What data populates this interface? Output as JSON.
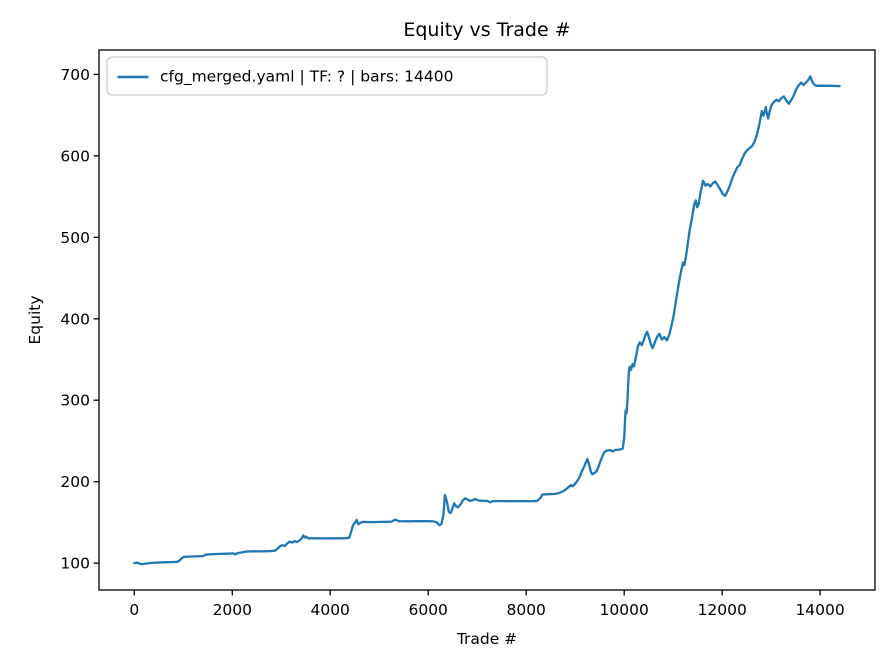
{
  "figure": {
    "background": "#ffffff",
    "text_color": "#000000",
    "spine_color": "#000000"
  },
  "chart_data": {
    "type": "line",
    "title": "Equity vs Trade #",
    "xlabel": "Trade #",
    "ylabel": "Equity",
    "grid": false,
    "legend_position": "upper-left",
    "x_ticks": [
      0,
      2000,
      4000,
      6000,
      8000,
      10000,
      12000,
      14000
    ],
    "y_ticks": [
      100,
      200,
      300,
      400,
      500,
      600,
      700
    ],
    "xlim": [
      -720,
      15120
    ],
    "ylim": [
      67,
      730
    ],
    "series": [
      {
        "name": "cfg_merged.yaml | TF: ? | bars: 14400",
        "color": "#1f77b4",
        "points": [
          [
            0,
            100
          ],
          [
            60,
            100.5
          ],
          [
            100,
            99.5
          ],
          [
            160,
            98.7
          ],
          [
            220,
            99.3
          ],
          [
            300,
            100
          ],
          [
            450,
            100.6
          ],
          [
            600,
            101
          ],
          [
            750,
            101.3
          ],
          [
            880,
            101.6
          ],
          [
            930,
            103.5
          ],
          [
            970,
            106
          ],
          [
            1010,
            107.8
          ],
          [
            1100,
            108
          ],
          [
            1250,
            108.2
          ],
          [
            1400,
            108.6
          ],
          [
            1460,
            110.3
          ],
          [
            1550,
            110.8
          ],
          [
            1700,
            111.2
          ],
          [
            1900,
            111.6
          ],
          [
            2020,
            111.9
          ],
          [
            2060,
            110.8
          ],
          [
            2110,
            112.3
          ],
          [
            2200,
            113.2
          ],
          [
            2300,
            114.3
          ],
          [
            2450,
            114.5
          ],
          [
            2600,
            114.4
          ],
          [
            2750,
            114.6
          ],
          [
            2870,
            115.2
          ],
          [
            2920,
            117.5
          ],
          [
            2970,
            120.5
          ],
          [
            3020,
            122
          ],
          [
            3070,
            121
          ],
          [
            3120,
            124
          ],
          [
            3170,
            126.3
          ],
          [
            3220,
            125.2
          ],
          [
            3270,
            127
          ],
          [
            3320,
            125.8
          ],
          [
            3370,
            127.8
          ],
          [
            3420,
            130.5
          ],
          [
            3450,
            134
          ],
          [
            3480,
            131.3
          ],
          [
            3510,
            132.6
          ],
          [
            3550,
            130.4
          ],
          [
            3700,
            130.5
          ],
          [
            3900,
            130.4
          ],
          [
            4100,
            130.5
          ],
          [
            4300,
            130.5
          ],
          [
            4390,
            131.2
          ],
          [
            4430,
            139
          ],
          [
            4460,
            146
          ],
          [
            4500,
            149
          ],
          [
            4540,
            153
          ],
          [
            4570,
            147.8
          ],
          [
            4620,
            149.6
          ],
          [
            4680,
            150.6
          ],
          [
            4850,
            150.4
          ],
          [
            5050,
            150.6
          ],
          [
            5250,
            150.8
          ],
          [
            5320,
            153.4
          ],
          [
            5400,
            151.6
          ],
          [
            5550,
            151.4
          ],
          [
            5750,
            151.5
          ],
          [
            5950,
            151.5
          ],
          [
            6100,
            151.4
          ],
          [
            6170,
            150.2
          ],
          [
            6230,
            146.5
          ],
          [
            6270,
            148
          ],
          [
            6310,
            159
          ],
          [
            6340,
            183.5
          ],
          [
            6380,
            176
          ],
          [
            6420,
            163
          ],
          [
            6460,
            161.5
          ],
          [
            6500,
            168
          ],
          [
            6530,
            173.5
          ],
          [
            6570,
            169.8
          ],
          [
            6610,
            168.5
          ],
          [
            6660,
            172
          ],
          [
            6710,
            177.3
          ],
          [
            6760,
            179.6
          ],
          [
            6810,
            177.8
          ],
          [
            6860,
            176.4
          ],
          [
            6910,
            177.2
          ],
          [
            6960,
            178.6
          ],
          [
            7010,
            177.3
          ],
          [
            7100,
            176.4
          ],
          [
            7200,
            176.5
          ],
          [
            7260,
            174.6
          ],
          [
            7320,
            176.2
          ],
          [
            7500,
            176.1
          ],
          [
            7700,
            176
          ],
          [
            7900,
            176.1
          ],
          [
            8100,
            176
          ],
          [
            8220,
            176.4
          ],
          [
            8290,
            180
          ],
          [
            8330,
            184.3
          ],
          [
            8450,
            184.6
          ],
          [
            8600,
            185
          ],
          [
            8680,
            186.3
          ],
          [
            8750,
            188
          ],
          [
            8810,
            190.5
          ],
          [
            8860,
            193
          ],
          [
            8910,
            195.8
          ],
          [
            8950,
            194.2
          ],
          [
            9000,
            197.5
          ],
          [
            9050,
            201.5
          ],
          [
            9100,
            207
          ],
          [
            9140,
            213
          ],
          [
            9180,
            218
          ],
          [
            9220,
            224
          ],
          [
            9250,
            227.8
          ],
          [
            9280,
            222
          ],
          [
            9320,
            212
          ],
          [
            9350,
            209
          ],
          [
            9400,
            211
          ],
          [
            9440,
            213
          ],
          [
            9480,
            219
          ],
          [
            9520,
            226
          ],
          [
            9560,
            232
          ],
          [
            9600,
            236.8
          ],
          [
            9650,
            238.3
          ],
          [
            9720,
            238.6
          ],
          [
            9770,
            237.2
          ],
          [
            9820,
            239
          ],
          [
            9900,
            239.3
          ],
          [
            9970,
            240.5
          ],
          [
            10000,
            254
          ],
          [
            10015,
            272
          ],
          [
            10030,
            287
          ],
          [
            10050,
            284.5
          ],
          [
            10065,
            298
          ],
          [
            10080,
            318
          ],
          [
            10095,
            333
          ],
          [
            10110,
            341
          ],
          [
            10140,
            337.5
          ],
          [
            10170,
            344.5
          ],
          [
            10200,
            341.5
          ],
          [
            10240,
            353
          ],
          [
            10280,
            366
          ],
          [
            10320,
            371
          ],
          [
            10360,
            367.5
          ],
          [
            10400,
            374
          ],
          [
            10440,
            381
          ],
          [
            10470,
            384
          ],
          [
            10510,
            376
          ],
          [
            10550,
            368
          ],
          [
            10580,
            364
          ],
          [
            10620,
            370
          ],
          [
            10670,
            377.5
          ],
          [
            10720,
            381.5
          ],
          [
            10770,
            374.5
          ],
          [
            10820,
            377.5
          ],
          [
            10870,
            373.5
          ],
          [
            10920,
            380
          ],
          [
            10960,
            390
          ],
          [
            11010,
            404
          ],
          [
            11060,
            423
          ],
          [
            11110,
            442
          ],
          [
            11160,
            458
          ],
          [
            11200,
            469
          ],
          [
            11230,
            466
          ],
          [
            11270,
            480
          ],
          [
            11310,
            497
          ],
          [
            11340,
            510
          ],
          [
            11370,
            519
          ],
          [
            11400,
            530
          ],
          [
            11430,
            540
          ],
          [
            11460,
            545.5
          ],
          [
            11490,
            537
          ],
          [
            11520,
            540.5
          ],
          [
            11550,
            552
          ],
          [
            11580,
            561
          ],
          [
            11610,
            569.5
          ],
          [
            11660,
            563.5
          ],
          [
            11710,
            565.5
          ],
          [
            11760,
            562.5
          ],
          [
            11810,
            566.5
          ],
          [
            11860,
            568.5
          ],
          [
            11910,
            564
          ],
          [
            11960,
            559
          ],
          [
            12010,
            553.5
          ],
          [
            12060,
            551
          ],
          [
            12110,
            556.5
          ],
          [
            12160,
            564
          ],
          [
            12210,
            573
          ],
          [
            12260,
            580
          ],
          [
            12310,
            586
          ],
          [
            12360,
            589
          ],
          [
            12410,
            596.5
          ],
          [
            12460,
            603
          ],
          [
            12510,
            607
          ],
          [
            12560,
            609.5
          ],
          [
            12610,
            612
          ],
          [
            12660,
            617
          ],
          [
            12710,
            626
          ],
          [
            12760,
            639
          ],
          [
            12790,
            649
          ],
          [
            12810,
            655
          ],
          [
            12840,
            649.5
          ],
          [
            12870,
            655
          ],
          [
            12890,
            660
          ],
          [
            12910,
            652.5
          ],
          [
            12940,
            646
          ],
          [
            12970,
            655
          ],
          [
            13010,
            662.5
          ],
          [
            13060,
            666.5
          ],
          [
            13110,
            669
          ],
          [
            13160,
            667
          ],
          [
            13210,
            671
          ],
          [
            13260,
            673
          ],
          [
            13310,
            668
          ],
          [
            13360,
            664
          ],
          [
            13410,
            668.5
          ],
          [
            13460,
            674
          ],
          [
            13510,
            681.5
          ],
          [
            13560,
            686.5
          ],
          [
            13610,
            690
          ],
          [
            13660,
            687
          ],
          [
            13710,
            690
          ],
          [
            13760,
            693.5
          ],
          [
            13800,
            697.5
          ],
          [
            13840,
            691
          ],
          [
            13880,
            687.5
          ],
          [
            13930,
            686
          ],
          [
            14050,
            686.2
          ],
          [
            14200,
            686
          ],
          [
            14400,
            685.7
          ]
        ]
      }
    ]
  }
}
